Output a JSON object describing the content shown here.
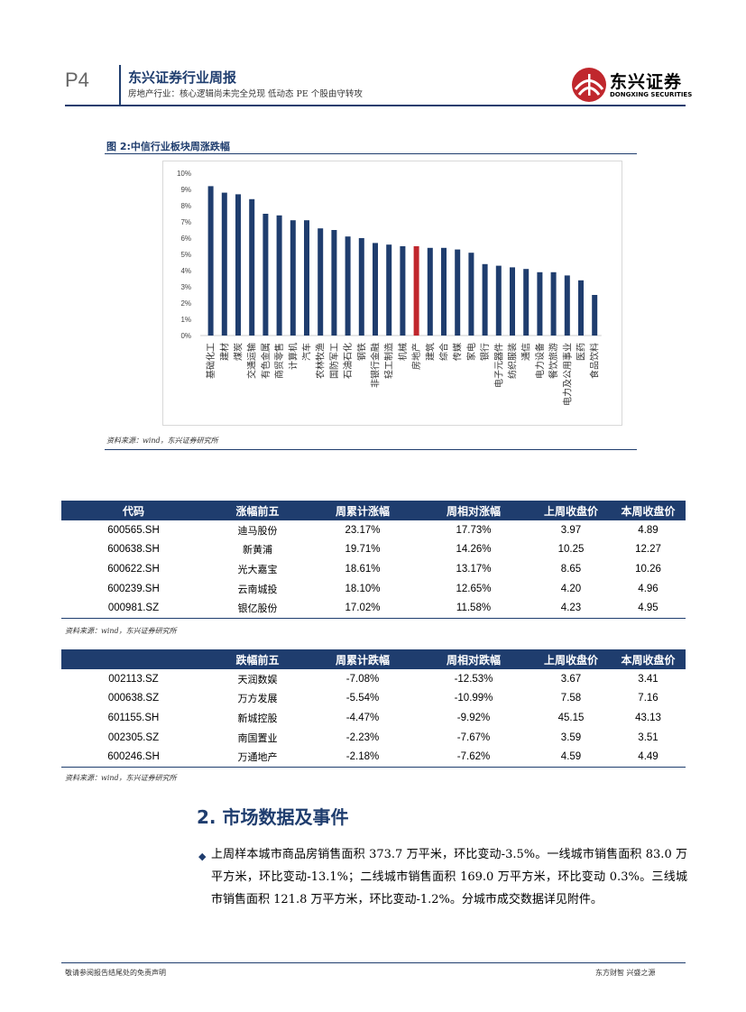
{
  "header": {
    "page_number": "P4",
    "title": "东兴证券行业周报",
    "subtitle": "房地产行业：核心逻辑尚未完全兑现 低动态 PE 个股由守转攻",
    "logo_cn": "东兴证券",
    "logo_en": "DONGXING SECURITIES"
  },
  "figure": {
    "title": "图 2:中信行业板块周涨跌幅",
    "source": "资料来源：wind，东兴证券研究所"
  },
  "chart_data": {
    "type": "bar",
    "categories": [
      "基础化工",
      "建材",
      "煤炭",
      "交通运输",
      "有色金属",
      "商贸零售",
      "计算机",
      "汽车",
      "农林牧渔",
      "国防军工",
      "石油石化",
      "钢铁",
      "非银行金融",
      "轻工制造",
      "机械",
      "房地产",
      "建筑",
      "综合",
      "传媒",
      "家电",
      "银行",
      "电子元器件",
      "纺织服装",
      "通信",
      "电力设备",
      "餐饮旅游",
      "电力及公用事业",
      "医药",
      "食品饮料"
    ],
    "values": [
      9.2,
      8.8,
      8.7,
      8.4,
      7.5,
      7.4,
      7.1,
      7.1,
      6.6,
      6.5,
      6.1,
      6.0,
      5.7,
      5.6,
      5.5,
      5.5,
      5.4,
      5.4,
      5.3,
      5.1,
      4.4,
      4.3,
      4.2,
      4.1,
      3.9,
      3.9,
      3.7,
      3.4,
      2.5
    ],
    "highlight": "房地产",
    "bar_color": "#1f3d6e",
    "highlight_color": "#c0272d",
    "ylim": [
      0,
      10
    ],
    "yticks": [
      "0%",
      "1%",
      "2%",
      "3%",
      "4%",
      "5%",
      "6%",
      "7%",
      "8%",
      "9%",
      "10%"
    ],
    "grid": false
  },
  "gainers": {
    "headers": [
      "代码",
      "涨幅前五",
      "周累计涨幅",
      "周相对涨幅",
      "上周收盘价",
      "本周收盘价"
    ],
    "rows": [
      [
        "600565.SH",
        "迪马股份",
        "23.17%",
        "17.73%",
        "3.97",
        "4.89"
      ],
      [
        "600638.SH",
        "新黄浦",
        "19.71%",
        "14.26%",
        "10.25",
        "12.27"
      ],
      [
        "600622.SH",
        "光大嘉宝",
        "18.61%",
        "13.17%",
        "8.65",
        "10.26"
      ],
      [
        "600239.SH",
        "云南城投",
        "18.10%",
        "12.65%",
        "4.20",
        "4.96"
      ],
      [
        "000981.SZ",
        "银亿股份",
        "17.02%",
        "11.58%",
        "4.23",
        "4.95"
      ]
    ],
    "source": "资料来源：wind，东兴证券研究所"
  },
  "losers": {
    "headers": [
      "",
      "跌幅前五",
      "周累计跌幅",
      "周相对跌幅",
      "上周收盘价",
      "本周收盘价"
    ],
    "rows": [
      [
        "002113.SZ",
        "天润数娱",
        "-7.08%",
        "-12.53%",
        "3.67",
        "3.41"
      ],
      [
        "000638.SZ",
        "万方发展",
        "-5.54%",
        "-10.99%",
        "7.58",
        "7.16"
      ],
      [
        "601155.SH",
        "新城控股",
        "-4.47%",
        "-9.92%",
        "45.15",
        "43.13"
      ],
      [
        "002305.SZ",
        "南国置业",
        "-2.23%",
        "-7.67%",
        "3.59",
        "3.51"
      ],
      [
        "600246.SH",
        "万通地产",
        "-2.18%",
        "-7.62%",
        "4.59",
        "4.49"
      ]
    ],
    "source": "资料来源：wind，东兴证券研究所"
  },
  "section": {
    "title": "2. 市场数据及事件",
    "bullet": "◆",
    "paragraph": "上周样本城市商品房销售面积 373.7 万平米，环比变动-3.5%。一线城市销售面积 83.0 万平方米，环比变动-13.1%；二线城市销售面积 169.0 万平方米，环比变动 0.3%。三线城市销售面积 121.8 万平方米，环比变动-1.2%。分城市成交数据详见附件。"
  },
  "footer": {
    "left": "敬请参阅报告结尾处的免责声明",
    "right": "东方财智 兴盛之源"
  }
}
